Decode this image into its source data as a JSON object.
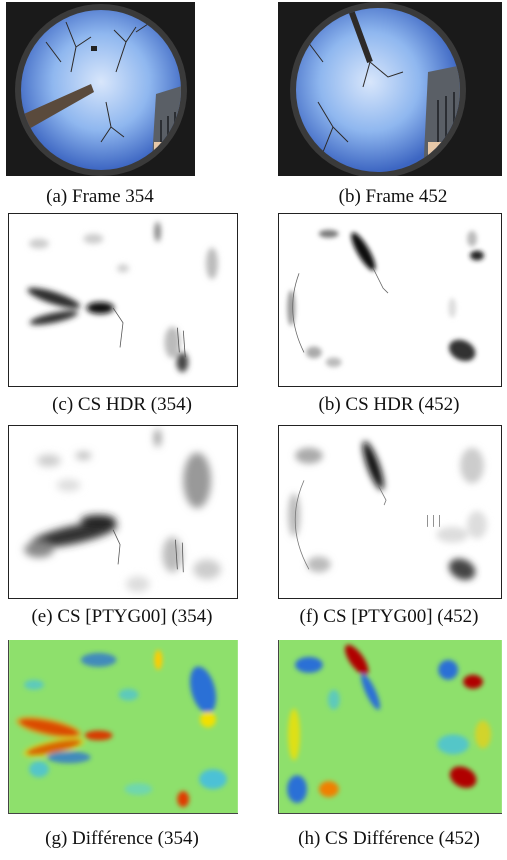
{
  "figure": {
    "captions": {
      "a": "(a) Frame 354",
      "b": "(b) Frame 452",
      "c": "(c) CS HDR (354)",
      "d": "(b) CS HDR (452)",
      "e": "(e) CS [PTYG00] (354)",
      "f": "(f) CS [PTYG00] (452)",
      "g": "(g) Différence (354)",
      "h": "(h) CS Différence (452)"
    },
    "colors": {
      "sky": "#8fb7ef",
      "lens_rim": "#1a1a1a",
      "diff_background": "#8ee06c",
      "diff_positive": "#b00000",
      "diff_negative": "#2a6fd6",
      "saliency_ink": "#202020"
    }
  }
}
